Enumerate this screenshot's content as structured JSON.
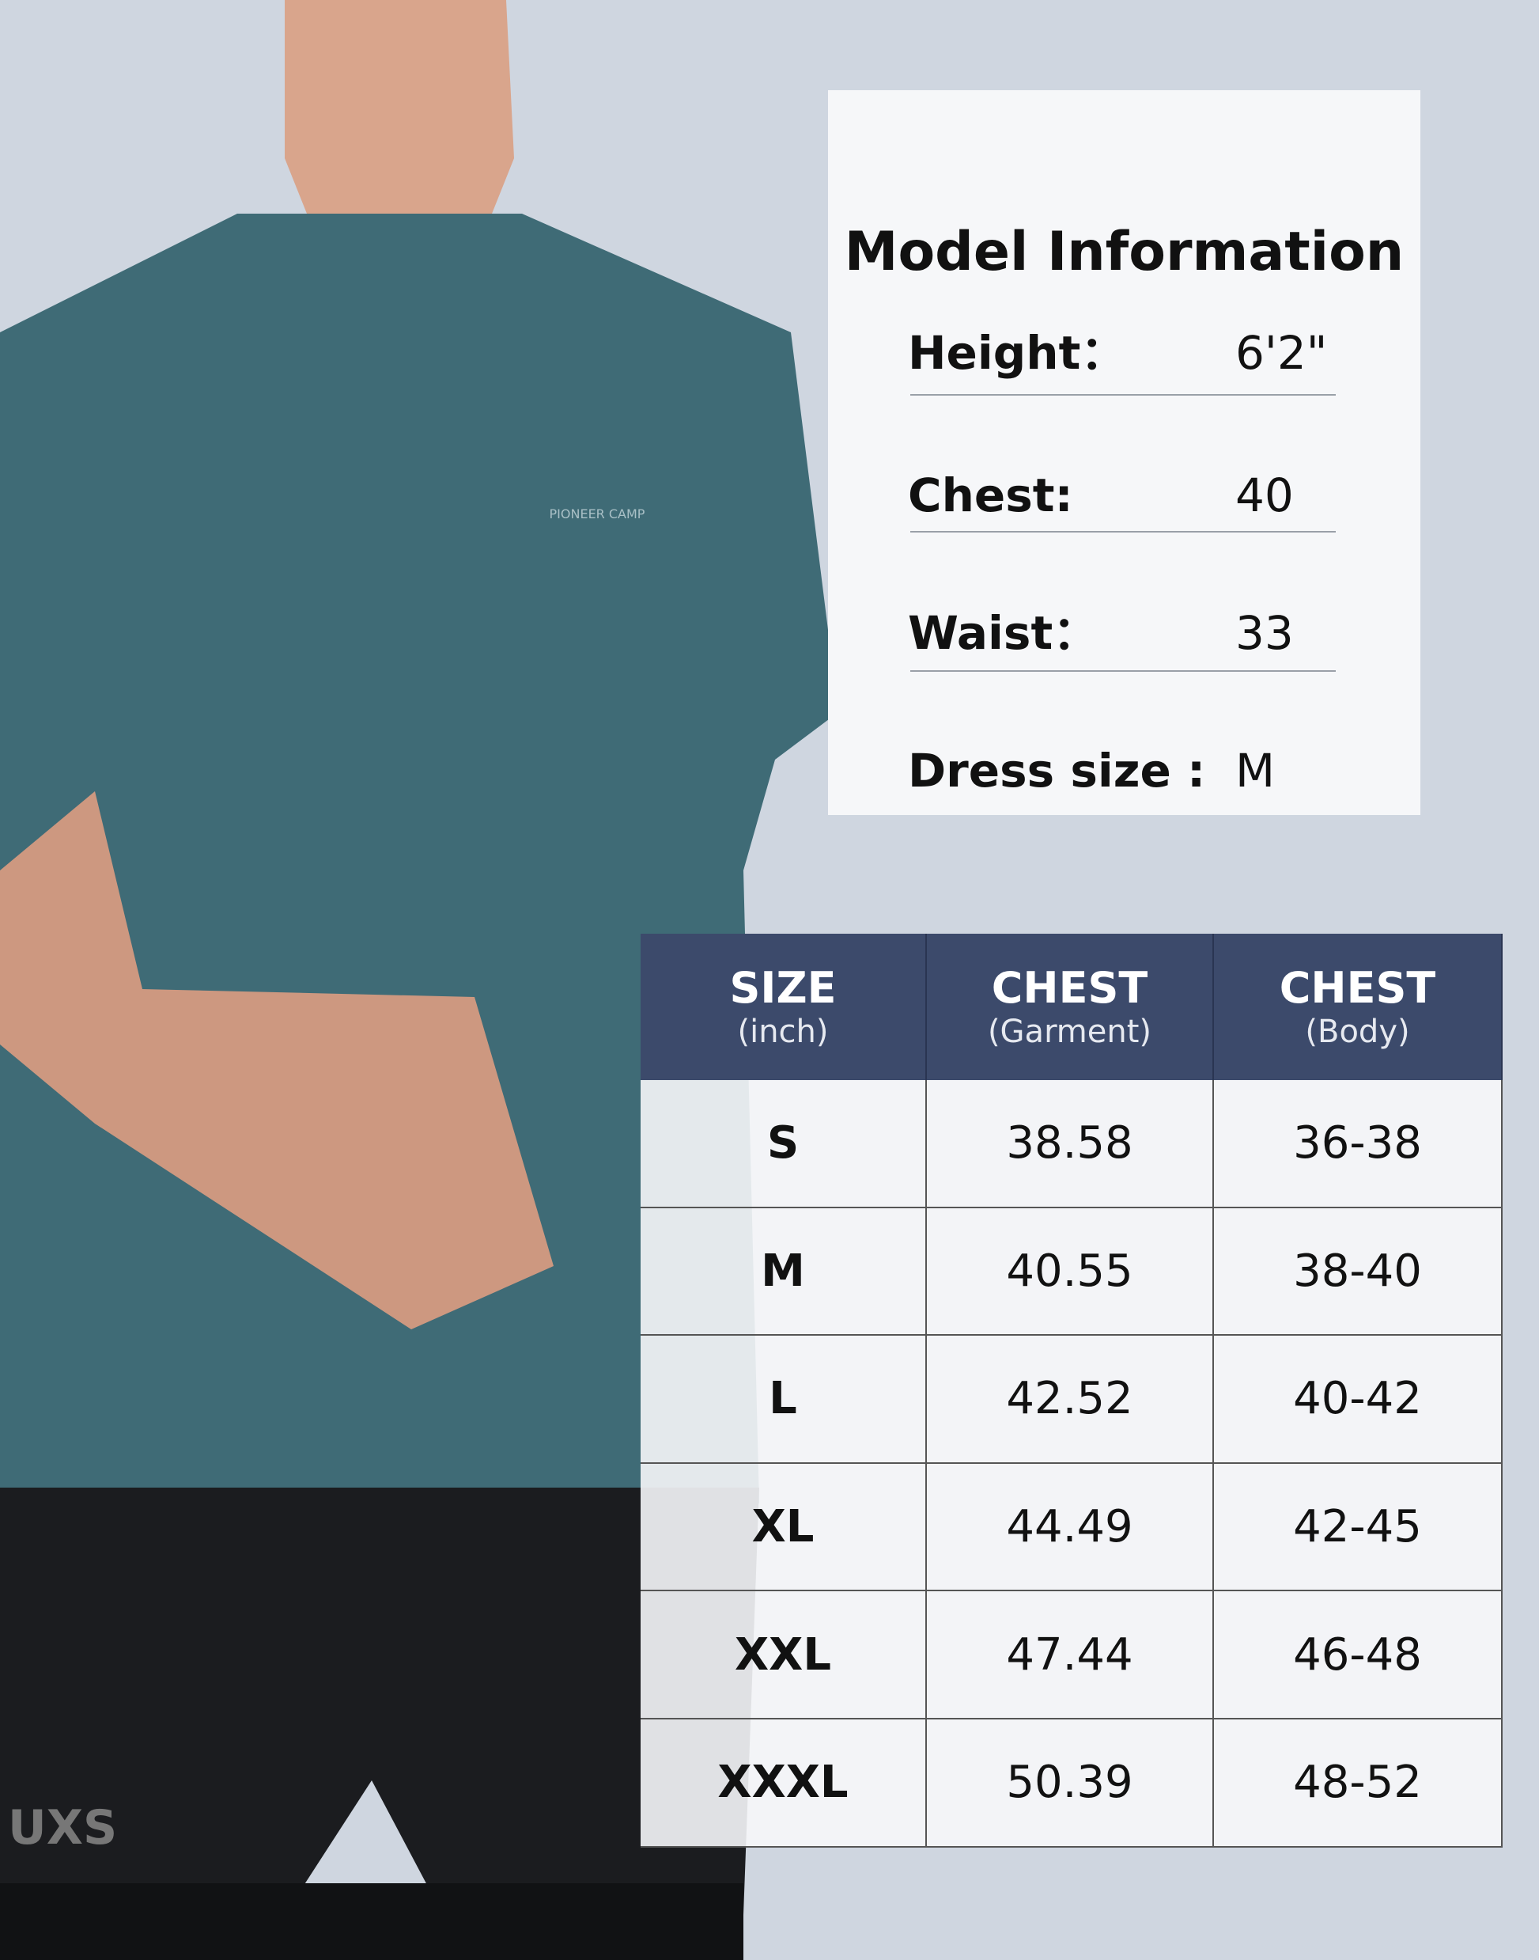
{
  "model_info": {
    "title": "Model Information",
    "rows": [
      {
        "label": "Height：",
        "value": "6'2\""
      },
      {
        "label": "Chest:",
        "value": "40"
      },
      {
        "label": "Waist：",
        "value": "33"
      },
      {
        "label": "Dress size :",
        "value": "M"
      }
    ]
  },
  "size_table": {
    "columns": [
      {
        "title": "SIZE",
        "unit": "(inch)"
      },
      {
        "title": "CHEST",
        "unit": "(Garment)"
      },
      {
        "title": "CHEST",
        "unit": "(Body)"
      }
    ],
    "rows": [
      [
        "S",
        "38.58",
        "36-38"
      ],
      [
        "M",
        "40.55",
        "38-40"
      ],
      [
        "L",
        "42.52",
        "40-42"
      ],
      [
        "XL",
        "44.49",
        "42-45"
      ],
      [
        "XXL",
        "47.44",
        "46-48"
      ],
      [
        "XXXL",
        "50.39",
        "48-52"
      ]
    ]
  },
  "photo_text": {
    "shirt_logo": "PIONEER CAMP",
    "shorts_logo": "UXS"
  }
}
